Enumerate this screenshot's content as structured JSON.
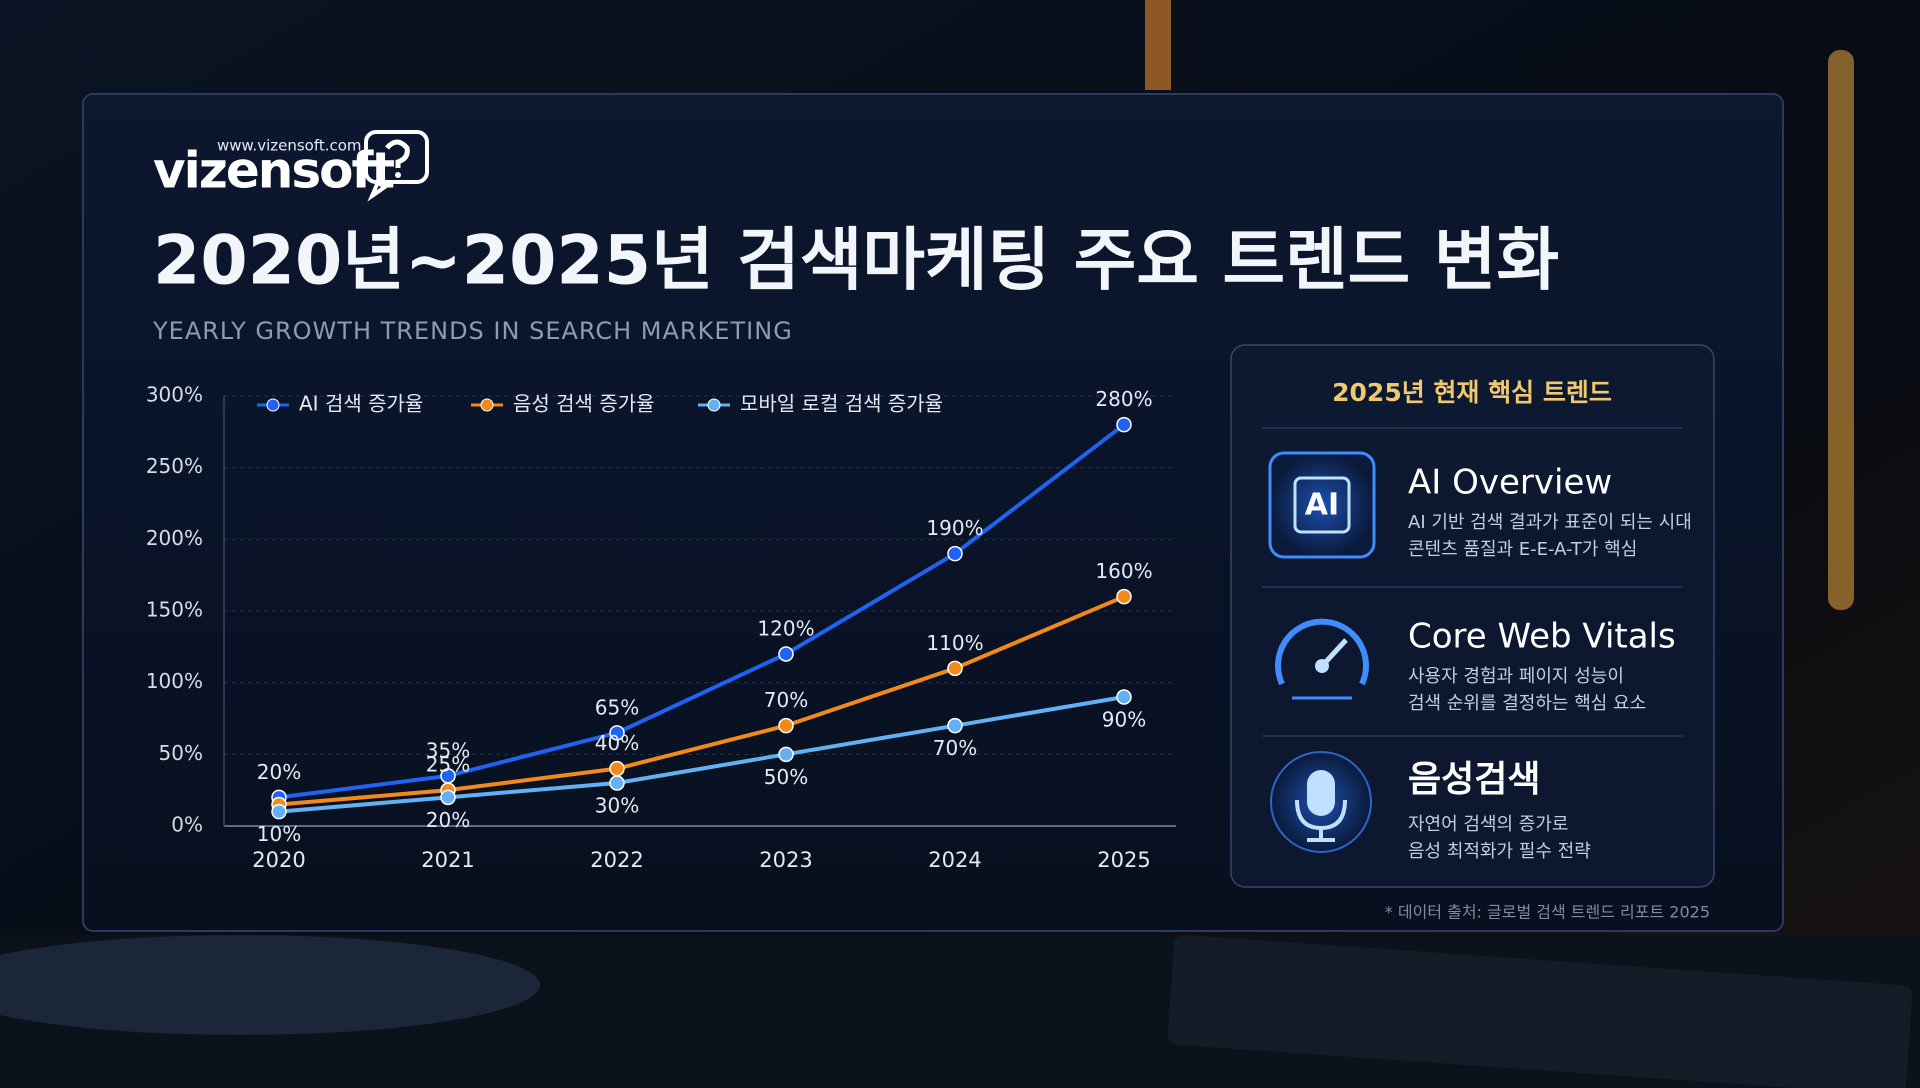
{
  "header": {
    "logo": "vizensoft",
    "url": "www.vizensoft.com"
  },
  "chart_data": {
    "type": "line",
    "title": "2020년~2025년 검색마케팅 주요 트렌드 변화",
    "subtitle": "YEARLY GROWTH TRENDS IN SEARCH MARKETING",
    "categories": [
      "2020",
      "2021",
      "2022",
      "2023",
      "2024",
      "2025"
    ],
    "series": [
      {
        "name": "AI 검색 증가율",
        "color": "#1f63f2",
        "values": [
          20,
          35,
          65,
          120,
          190,
          280
        ],
        "value_labels": [
          "20%",
          "35%",
          "65%",
          "120%",
          "190%",
          "280%"
        ]
      },
      {
        "name": "음성 검색 증가율",
        "color": "#f28a1a",
        "values": [
          15,
          25,
          40,
          70,
          110,
          160
        ],
        "value_labels": [
          null,
          "25%",
          "40%",
          "70%",
          "110%",
          "160%"
        ]
      },
      {
        "name": "모바일 로컬 검색 증가율",
        "color": "#63b0f2",
        "values": [
          10,
          20,
          30,
          50,
          70,
          90
        ],
        "value_labels": [
          "10%",
          "20%",
          "30%",
          "50%",
          "70%",
          "90%"
        ]
      }
    ],
    "ylim": [
      0,
      300
    ],
    "yticks": [
      {
        "value": 0,
        "label": "0%"
      },
      {
        "value": 50,
        "label": "50%"
      },
      {
        "value": 100,
        "label": "100%"
      },
      {
        "value": 150,
        "label": "150%"
      },
      {
        "value": 200,
        "label": "200%"
      },
      {
        "value": 250,
        "label": "250%"
      },
      {
        "value": 300,
        "label": "300%"
      }
    ],
    "grid": true,
    "legend": "top-left"
  },
  "panel": {
    "title": "2025년 현재 핵심 트렌드",
    "items": [
      {
        "icon": "AI",
        "title": "AI Overview",
        "lines": [
          "AI 기반 검색 결과가 표준이 되는 시대",
          "콘텐츠 품질과 E-E-A-T가 핵심"
        ]
      },
      {
        "title": "Core Web Vitals",
        "lines": [
          "사용자 경험과 페이지 성능이",
          "검색 순위를 결정하는 핵심 요소"
        ]
      },
      {
        "title": "음성검색",
        "lines": [
          "자연어 검색의 증가로",
          "음성 최적화가 필수 전략"
        ]
      }
    ]
  },
  "footnote": "* 데이터 출처: 글로벌 검색 트렌드 리포트 2025"
}
